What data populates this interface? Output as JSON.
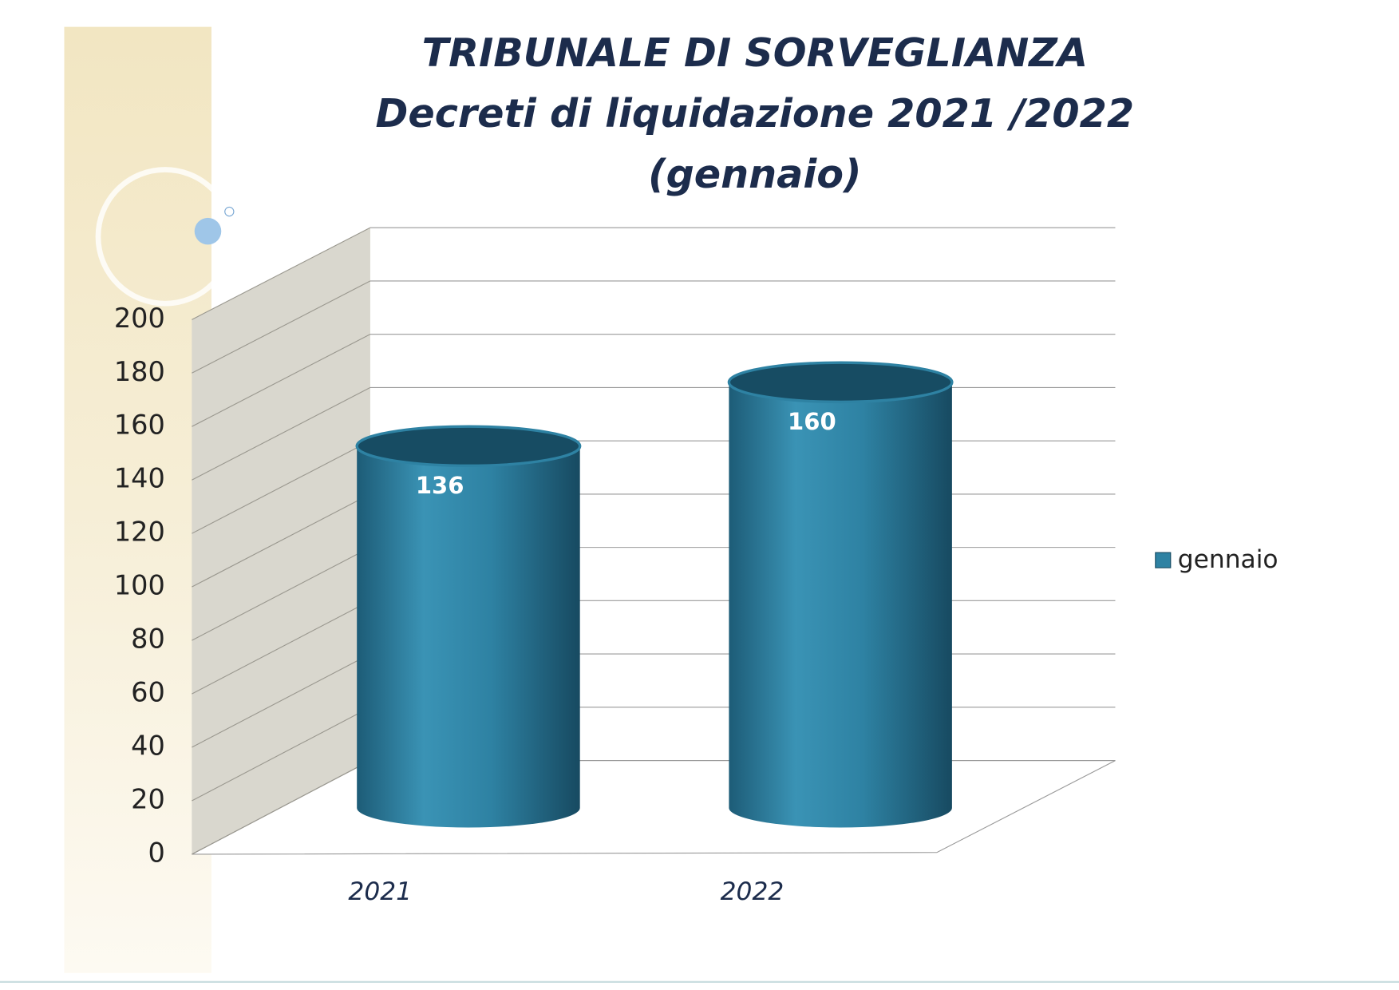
{
  "chart_data": {
    "type": "bar",
    "title": [
      "TRIBUNALE DI SORVEGLIANZA",
      "Decreti di liquidazione 2021 /2022",
      "(gennaio)"
    ],
    "categories": [
      "2021",
      "2022"
    ],
    "series": [
      {
        "name": "gennaio",
        "color": "#2e82a3",
        "values": [
          136,
          160
        ]
      }
    ],
    "ylim": [
      0,
      200
    ],
    "yticks": [
      0,
      20,
      40,
      60,
      80,
      100,
      120,
      140,
      160,
      180,
      200
    ],
    "grid": true,
    "legend": "right"
  }
}
